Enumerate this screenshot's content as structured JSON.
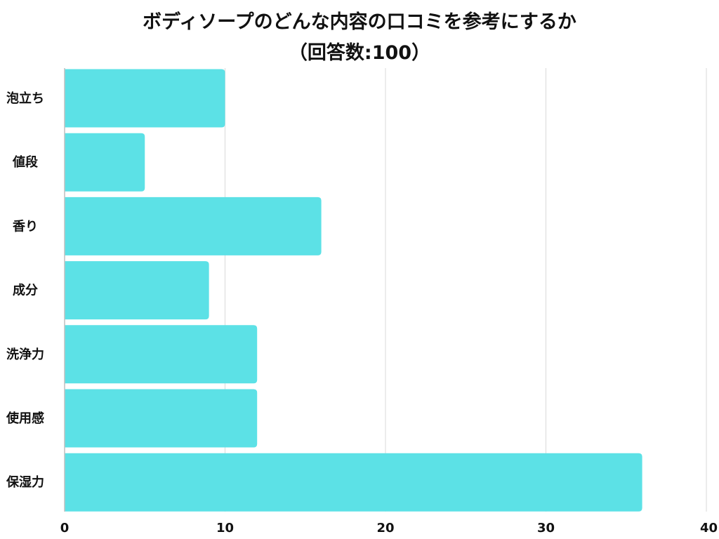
{
  "chart_data": {
    "type": "bar",
    "orientation": "horizontal",
    "title": "ボディソープのどんな内容の口コミを参考にするか",
    "subtitle": "（回答数:100）",
    "categories": [
      "泡立ち",
      "値段",
      "香り",
      "成分",
      "洗浄力",
      "使用感",
      "保湿力"
    ],
    "values": [
      10,
      5,
      16,
      9,
      12,
      12,
      36
    ],
    "xlim": [
      0,
      40
    ],
    "x_ticks": [
      0,
      10,
      20,
      30,
      40
    ],
    "grid": "vertical",
    "bar_color": "#5ce1e6",
    "grid_color": "#d9d9d9",
    "axis_color": "#bfbfbf"
  }
}
